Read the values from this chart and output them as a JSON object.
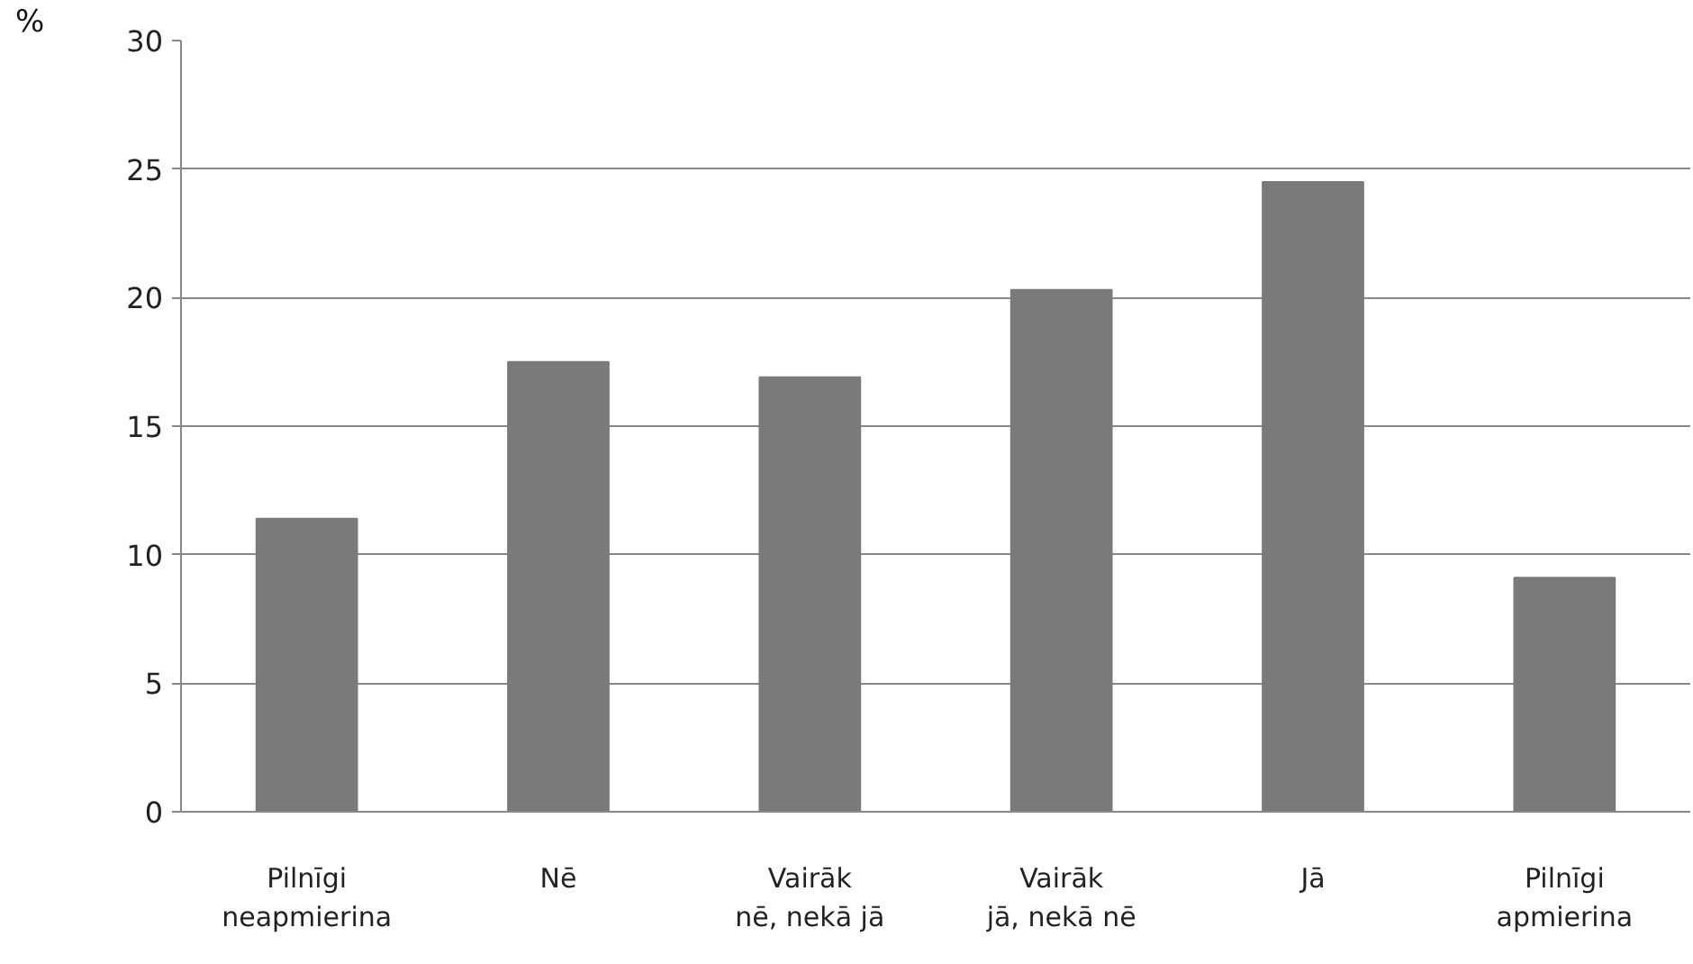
{
  "chart_data": {
    "type": "bar",
    "ylabel": "%",
    "categories": [
      "Pilnīgi neapmierina",
      "Nē",
      "Vairāk nē, nekā jā",
      "Vairāk jā, nekā nē",
      "Jā",
      "Pilnīgi apmierina"
    ],
    "values": [
      11.4,
      17.5,
      16.9,
      20.3,
      24.5,
      9.1
    ],
    "color": "#7a7a7a",
    "ylim": [
      0,
      30
    ],
    "yticks": [
      0,
      5,
      10,
      15,
      20,
      25,
      30
    ],
    "grid": "y"
  }
}
